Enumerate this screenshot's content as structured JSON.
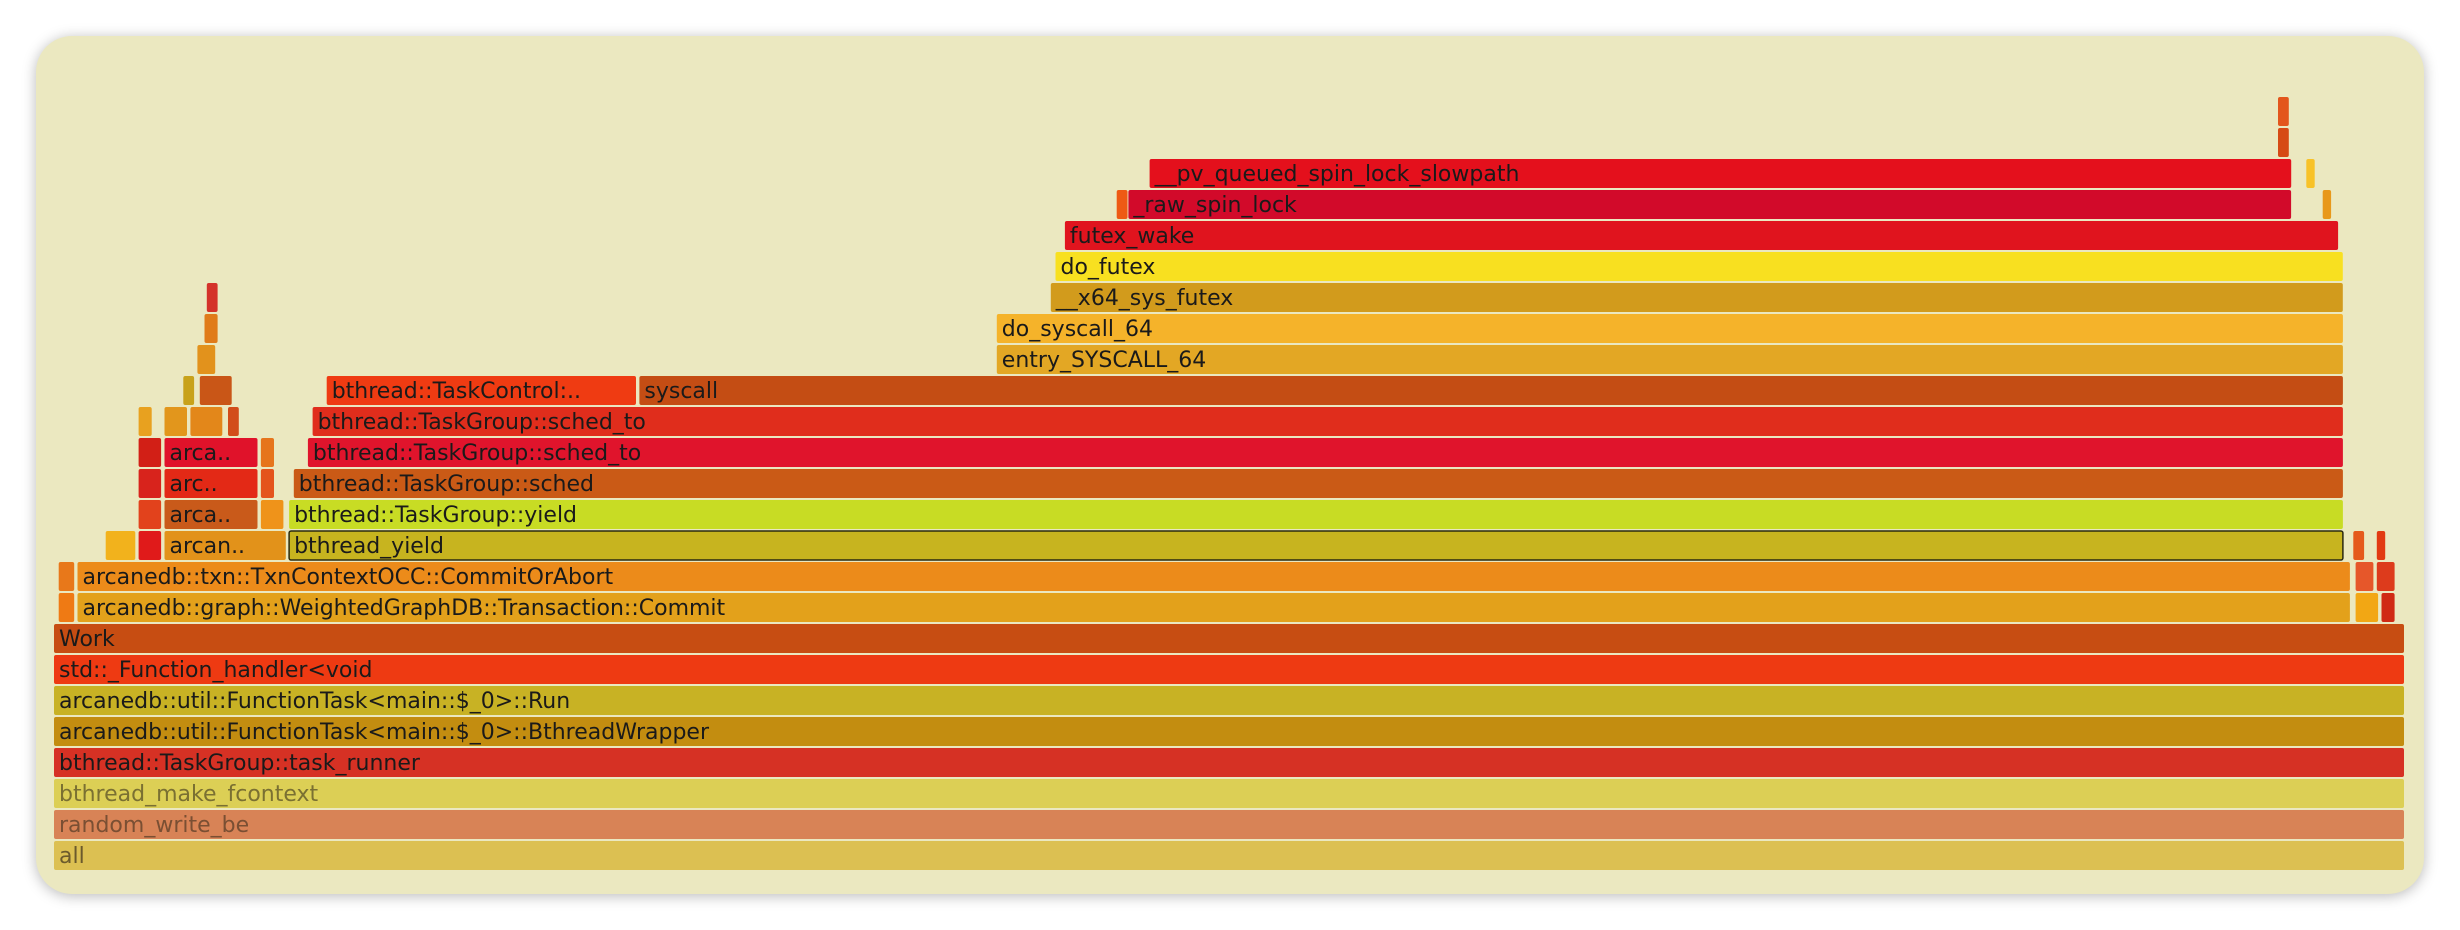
{
  "chart_data": {
    "type": "flamegraph",
    "total_samples": 1000,
    "frames": [
      {
        "label": "all",
        "level": 0,
        "start": 0,
        "width": 1000,
        "color": "#dcc052",
        "text_color": "#6b5a2c"
      },
      {
        "label": "random_write_be",
        "level": 1,
        "start": 0,
        "width": 1000,
        "color": "#d88356",
        "text_color": "#7a4f33"
      },
      {
        "label": "bthread_make_fcontext",
        "level": 2,
        "start": 0,
        "width": 1000,
        "color": "#dccf55",
        "text_color": "#7a7032"
      },
      {
        "label": "bthread::TaskGroup::task_runner",
        "level": 3,
        "start": 0,
        "width": 1000,
        "color": "#d63124"
      },
      {
        "label": "arcanedb::util::FunctionTask<main::$_0>::BthreadWrapper",
        "level": 4,
        "start": 0,
        "width": 1000,
        "color": "#c38d10"
      },
      {
        "label": "arcanedb::util::FunctionTask<main::$_0>::Run",
        "level": 5,
        "start": 0,
        "width": 1000,
        "color": "#c8b224"
      },
      {
        "label": "std::_Function_handler<void",
        "level": 6,
        "start": 0,
        "width": 1000,
        "color": "#ee3a12"
      },
      {
        "label": "Work",
        "level": 7,
        "start": 0,
        "width": 1000,
        "color": "#c74d12"
      },
      {
        "label": "",
        "level": 8,
        "start": 2,
        "width": 7,
        "color": "#ef7a14"
      },
      {
        "label": "arcanedb::graph::WeightedGraphDB::Transaction::Commit",
        "level": 8,
        "start": 10,
        "width": 967,
        "color": "#e3a11b"
      },
      {
        "label": "",
        "level": 8,
        "start": 979,
        "width": 10,
        "color": "#f2a714"
      },
      {
        "label": "",
        "level": 8,
        "start": 990,
        "width": 6,
        "color": "#d02a14"
      },
      {
        "label": "",
        "level": 9,
        "start": 2,
        "width": 7,
        "color": "#e8781a"
      },
      {
        "label": "arcanedb::txn::TxnContextOCC::CommitOrAbort",
        "level": 9,
        "start": 10,
        "width": 967,
        "color": "#ec8b1a"
      },
      {
        "label": "",
        "level": 9,
        "start": 979,
        "width": 8,
        "color": "#e6572a"
      },
      {
        "label": "",
        "level": 9,
        "start": 988,
        "width": 8,
        "color": "#dd3b1c"
      },
      {
        "label": "",
        "level": 10,
        "start": 22,
        "width": 13,
        "color": "#f2b21c"
      },
      {
        "label": "",
        "level": 10,
        "start": 36,
        "width": 10,
        "color": "#e01a1a"
      },
      {
        "label": "arcan..",
        "level": 10,
        "start": 47,
        "width": 52,
        "color": "#e2921a"
      },
      {
        "label": "bthread_yield",
        "level": 10,
        "start": 100,
        "width": 874,
        "color": "#c7b41f",
        "stroke": "#2a2a10"
      },
      {
        "label": "",
        "level": 10,
        "start": 978,
        "width": 5,
        "color": "#e55a1c"
      },
      {
        "label": "",
        "level": 10,
        "start": 988,
        "width": 4,
        "color": "#e23a12"
      },
      {
        "label": "",
        "level": 11,
        "start": 36,
        "width": 10,
        "color": "#e2421c"
      },
      {
        "label": "arcan..",
        "level": 11,
        "start": 47,
        "width": 40,
        "color": "#c95a1a"
      },
      {
        "label": "",
        "level": 11,
        "start": 88,
        "width": 10,
        "color": "#ef931a"
      },
      {
        "label": "bthread::TaskGroup::yield",
        "level": 11,
        "start": 100,
        "width": 874,
        "color": "#c8dc24"
      },
      {
        "label": "",
        "level": 12,
        "start": 36,
        "width": 10,
        "color": "#d8231c"
      },
      {
        "label": "arc..",
        "level": 12,
        "start": 47,
        "width": 40,
        "color": "#e32916"
      },
      {
        "label": "",
        "level": 12,
        "start": 88,
        "width": 6,
        "color": "#e4541c"
      },
      {
        "label": "bthread::TaskGroup::sched",
        "level": 12,
        "start": 102,
        "width": 872,
        "color": "#ca5a16"
      },
      {
        "label": "",
        "level": 13,
        "start": 36,
        "width": 10,
        "color": "#d21f16"
      },
      {
        "label": "arca..",
        "level": 13,
        "start": 47,
        "width": 40,
        "color": "#e0122a"
      },
      {
        "label": "",
        "level": 13,
        "start": 88,
        "width": 6,
        "color": "#e6751c"
      },
      {
        "label": "bthread::TaskGroup::sched_to",
        "level": 13,
        "start": 108,
        "width": 866,
        "color": "#e0142c"
      },
      {
        "label": "",
        "level": 14,
        "start": 36,
        "width": 6,
        "color": "#e8a11f"
      },
      {
        "label": "",
        "level": 14,
        "start": 47,
        "width": 10,
        "color": "#e2961c"
      },
      {
        "label": "",
        "level": 14,
        "start": 58,
        "width": 14,
        "color": "#e3871a"
      },
      {
        "label": "",
        "level": 14,
        "start": 74,
        "width": 5,
        "color": "#d24d1a"
      },
      {
        "label": "bthread::TaskGroup::sched_to",
        "level": 14,
        "start": 110,
        "width": 864,
        "color": "#e02d1c"
      },
      {
        "label": "",
        "level": 15,
        "start": 55,
        "width": 5,
        "color": "#c8a21a"
      },
      {
        "label": "",
        "level": 15,
        "start": 62,
        "width": 14,
        "color": "#c95617"
      },
      {
        "label": "bthread::TaskControl:..",
        "level": 15,
        "start": 116,
        "width": 132,
        "color": "#ef3b12"
      },
      {
        "label": "syscall",
        "level": 15,
        "start": 249,
        "width": 725,
        "color": "#c44d14"
      },
      {
        "label": "",
        "level": 16,
        "start": 61,
        "width": 8,
        "color": "#e2921c"
      },
      {
        "label": "entry_SYSCALL_64",
        "level": 16,
        "start": 401,
        "width": 573,
        "color": "#e3a724"
      },
      {
        "label": "",
        "level": 17,
        "start": 64,
        "width": 6,
        "color": "#e07b1a"
      },
      {
        "label": "do_syscall_64",
        "level": 17,
        "start": 401,
        "width": 573,
        "color": "#f5b32a"
      },
      {
        "label": "",
        "level": 18,
        "start": 65,
        "width": 5,
        "color": "#d4322a"
      },
      {
        "label": "__x64_sys_futex",
        "level": 18,
        "start": 424,
        "width": 550,
        "color": "#d29b1c"
      },
      {
        "label": "do_futex",
        "level": 19,
        "start": 426,
        "width": 548,
        "color": "#f8e020"
      },
      {
        "label": "futex_wake",
        "level": 20,
        "start": 430,
        "width": 542,
        "color": "#e0141e"
      },
      {
        "label": "",
        "level": 21,
        "start": 452,
        "width": 5,
        "color": "#ee5a14"
      },
      {
        "label": "_raw_spin_lock",
        "level": 21,
        "start": 457,
        "width": 495,
        "color": "#d20a2a"
      },
      {
        "label": "",
        "level": 21,
        "start": 965,
        "width": 4,
        "color": "#e8981a"
      },
      {
        "label": "__pv_queued_spin_lock_slowpath",
        "level": 22,
        "start": 466,
        "width": 486,
        "color": "#e4101c"
      },
      {
        "label": "",
        "level": 22,
        "start": 958,
        "width": 4,
        "color": "#f8c228"
      },
      {
        "label": "",
        "level": 23,
        "start": 946,
        "width": 5,
        "color": "#d64a14"
      },
      {
        "label": "",
        "level": 24,
        "start": 946,
        "width": 5,
        "color": "#e3561c"
      }
    ]
  }
}
